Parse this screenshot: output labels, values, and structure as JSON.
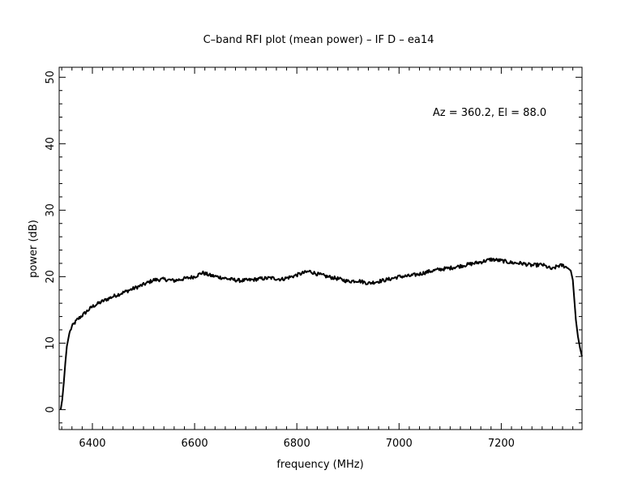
{
  "chart_data": {
    "type": "line",
    "title": "C–band RFI plot (mean power) – IF D – ea14",
    "xlabel": "frequency (MHz)",
    "ylabel": "power (dB)",
    "annotation": "Az = 360.2, El = 88.0",
    "xlim": [
      6335,
      7358
    ],
    "ylim": [
      -3,
      51.5
    ],
    "xticks": [
      6400,
      6600,
      6800,
      7000,
      7200
    ],
    "yticks": [
      0,
      10,
      20,
      30,
      40,
      50
    ],
    "x_minor_step": 20,
    "y_minor_step": 2,
    "grid": false,
    "line_color": "#000000",
    "series": [
      {
        "x": [
          6338,
          6341,
          6344,
          6347,
          6350,
          6355,
          6360,
          6370,
          6385,
          6400,
          6420,
          6440,
          6460,
          6480,
          6500,
          6520,
          6540,
          6560,
          6580,
          6600,
          6615,
          6630,
          6650,
          6670,
          6690,
          6710,
          6730,
          6750,
          6770,
          6790,
          6810,
          6825,
          6840,
          6860,
          6880,
          6900,
          6920,
          6940,
          6960,
          6980,
          7000,
          7020,
          7040,
          7060,
          7080,
          7100,
          7120,
          7140,
          7160,
          7180,
          7200,
          7220,
          7240,
          7260,
          7280,
          7300,
          7310,
          7320,
          7330,
          7336,
          7340,
          7343,
          7346,
          7350,
          7354,
          7358
        ],
        "y": [
          0,
          1.5,
          4,
          7,
          9.5,
          11.5,
          12.5,
          13.5,
          14.5,
          15.5,
          16.3,
          17.0,
          17.6,
          18.2,
          18.8,
          19.5,
          19.6,
          19.4,
          19.7,
          20.0,
          20.6,
          20.2,
          19.9,
          19.6,
          19.4,
          19.5,
          19.7,
          19.8,
          19.6,
          20.0,
          20.5,
          20.8,
          20.4,
          20.0,
          19.7,
          19.3,
          19.4,
          19.0,
          19.3,
          19.6,
          20.0,
          20.1,
          20.4,
          20.8,
          21.1,
          21.3,
          21.6,
          21.9,
          22.2,
          22.6,
          22.4,
          22.1,
          22.0,
          21.7,
          21.8,
          21.1,
          21.6,
          21.7,
          21.3,
          20.9,
          19.5,
          16.5,
          13.5,
          11.0,
          9.3,
          8.0
        ]
      }
    ]
  }
}
